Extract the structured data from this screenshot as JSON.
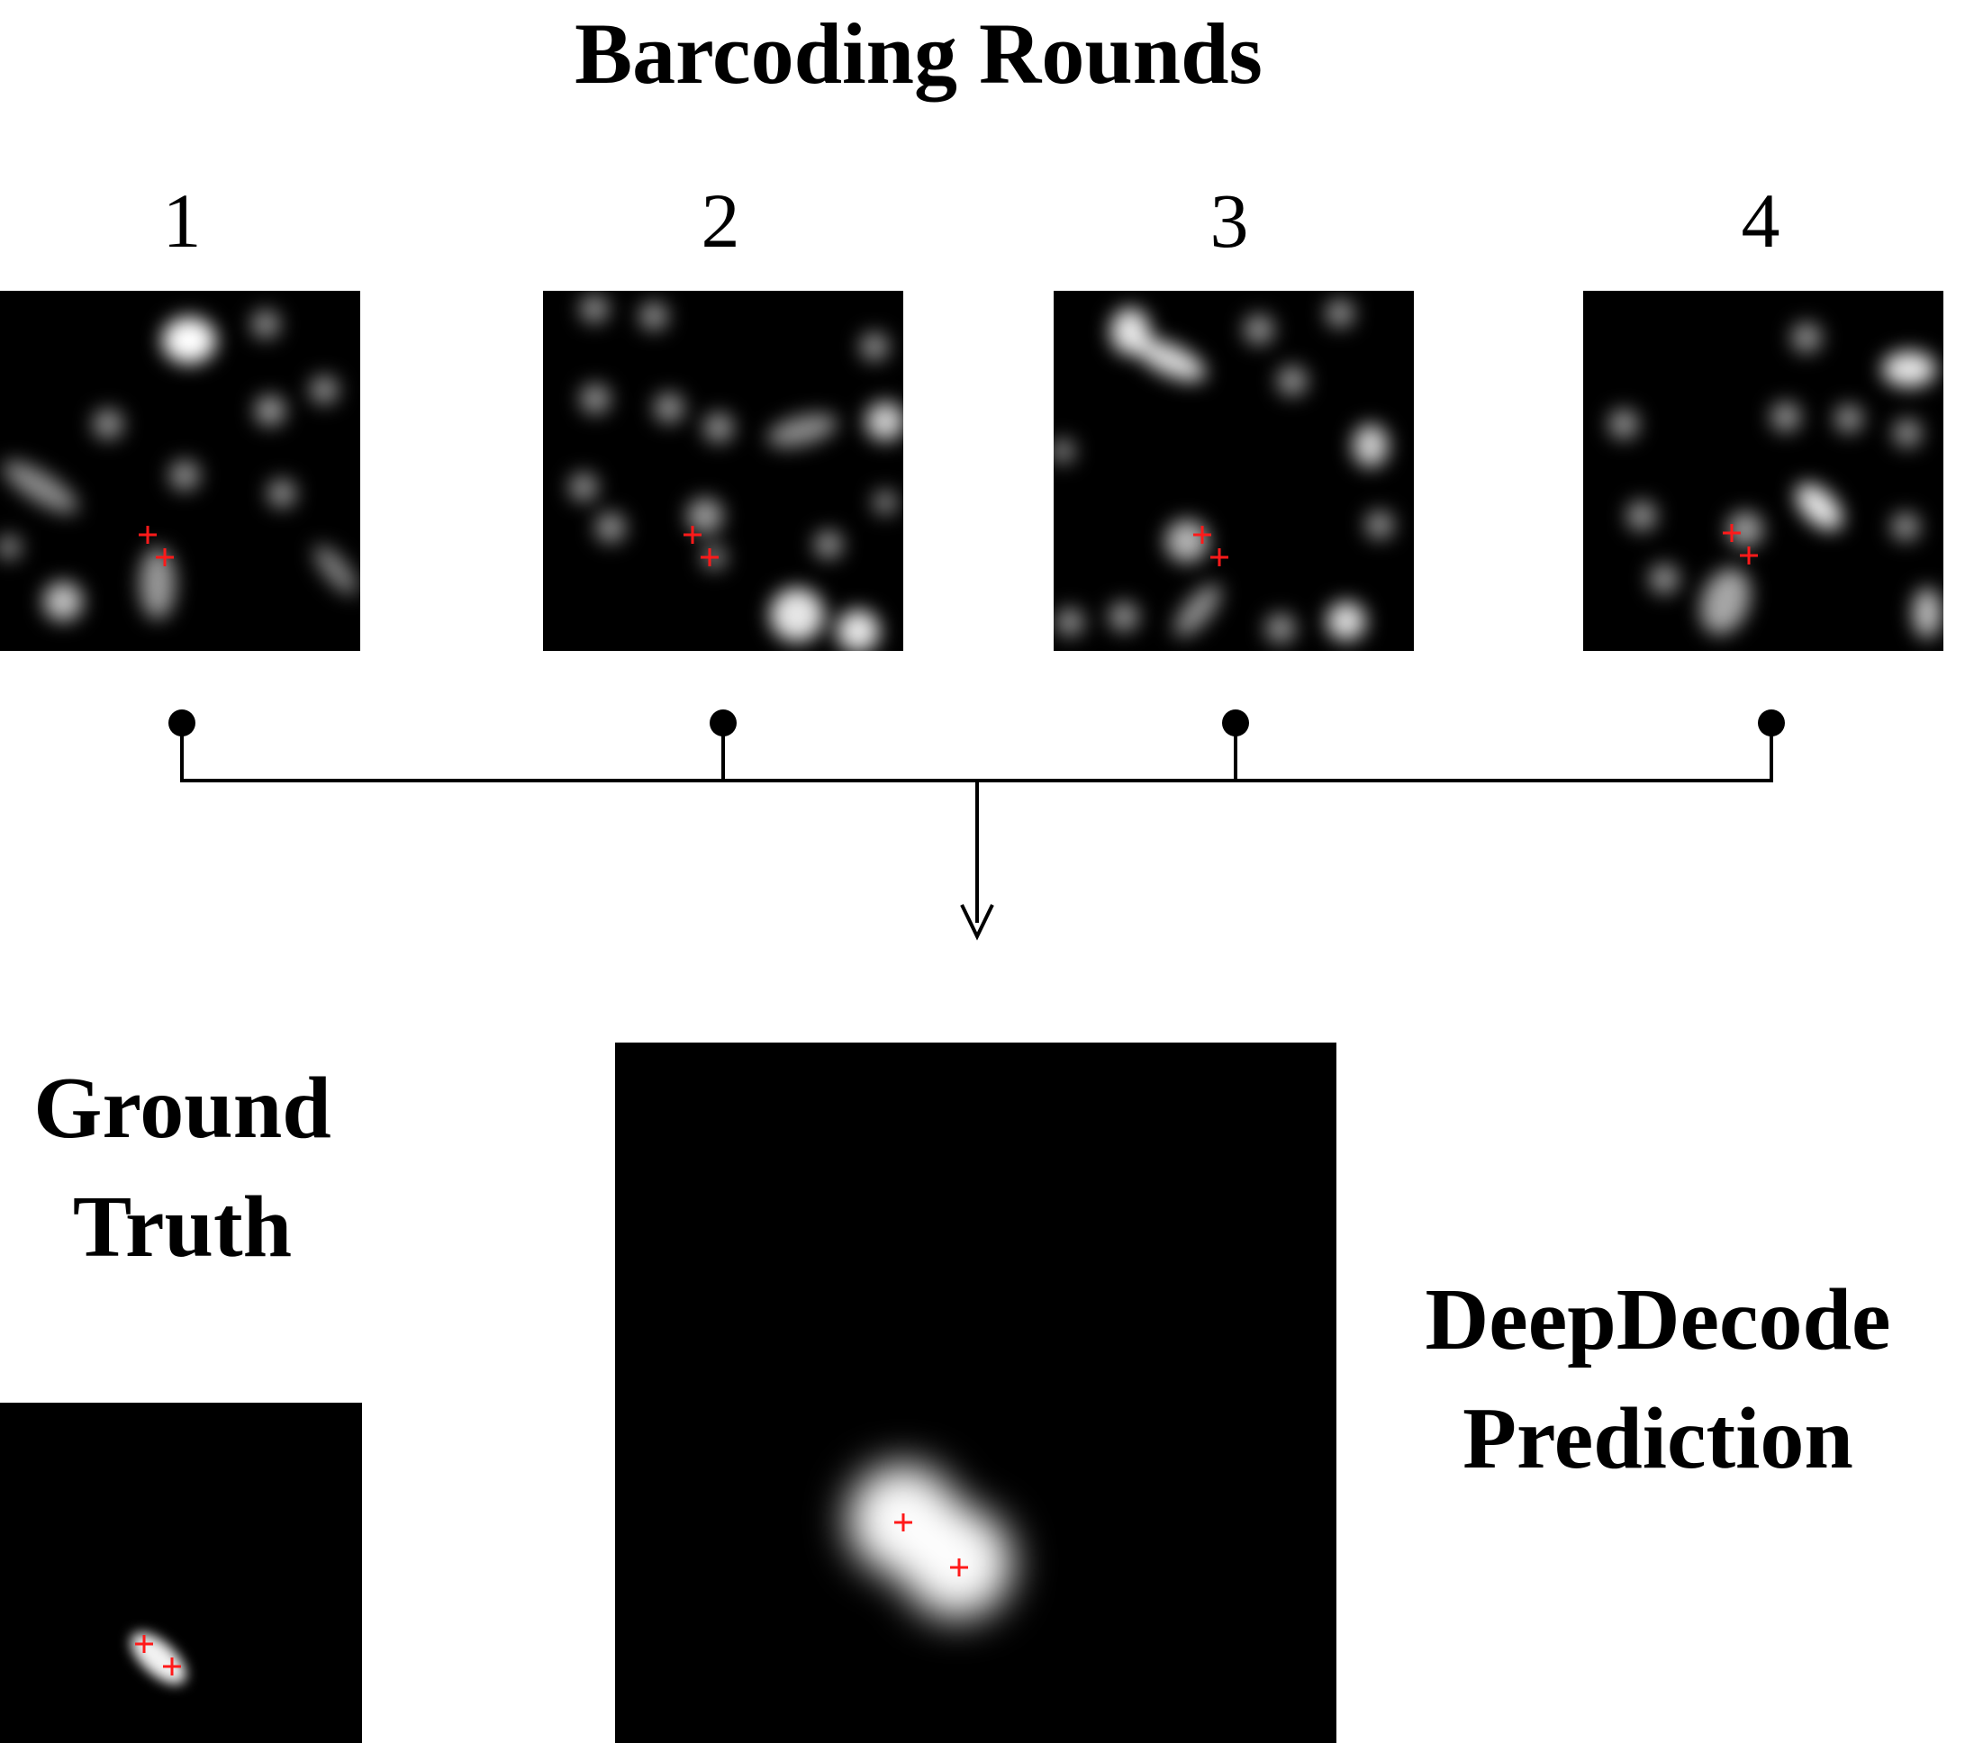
{
  "figure": {
    "title": "Barcoding Rounds",
    "rounds": [
      "1",
      "2",
      "3",
      "4"
    ],
    "ground_truth_label": [
      "Ground",
      "Truth"
    ],
    "prediction_label": [
      "DeepDecode",
      "Prediction"
    ]
  },
  "colors": {
    "background": "#ffffff",
    "panel": "#000000",
    "spot": "#ffffff",
    "marker": "#ff1a1a",
    "connector": "#000000"
  },
  "icons": {
    "marker": "red-plus-marker",
    "connector_node": "filled-circle",
    "arrow": "down-arrow"
  }
}
